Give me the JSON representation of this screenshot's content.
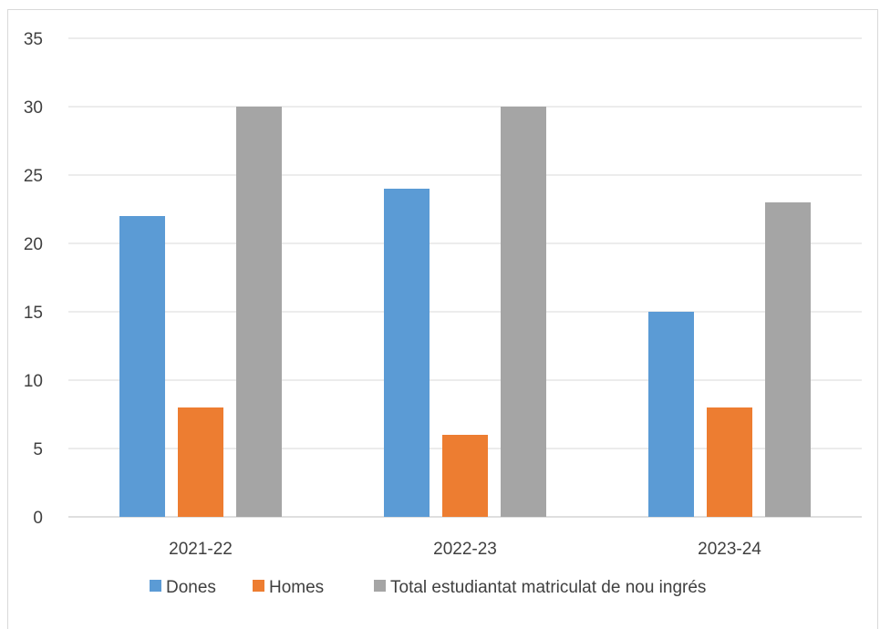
{
  "chart_data": {
    "type": "bar",
    "title": "",
    "xlabel": "",
    "ylabel": "",
    "categories": [
      "2021-22",
      "2022-23",
      "2023-24"
    ],
    "series": [
      {
        "name": "Dones",
        "values": [
          22,
          24,
          15
        ],
        "color": "#5b9bd5"
      },
      {
        "name": "Homes",
        "values": [
          8,
          6,
          8
        ],
        "color": "#ed7d31"
      },
      {
        "name": "Total estudiantat matriculat de nou ingrés",
        "values": [
          30,
          30,
          23
        ],
        "color": "#a5a5a5"
      }
    ],
    "ylim": [
      0,
      35
    ],
    "yticks": [
      0,
      5,
      10,
      15,
      20,
      25,
      30,
      35
    ],
    "yticks_labels": [
      "0",
      "5",
      "10",
      "15",
      "20",
      "25",
      "30",
      "35"
    ],
    "grid": true,
    "legend_position": "bottom"
  }
}
